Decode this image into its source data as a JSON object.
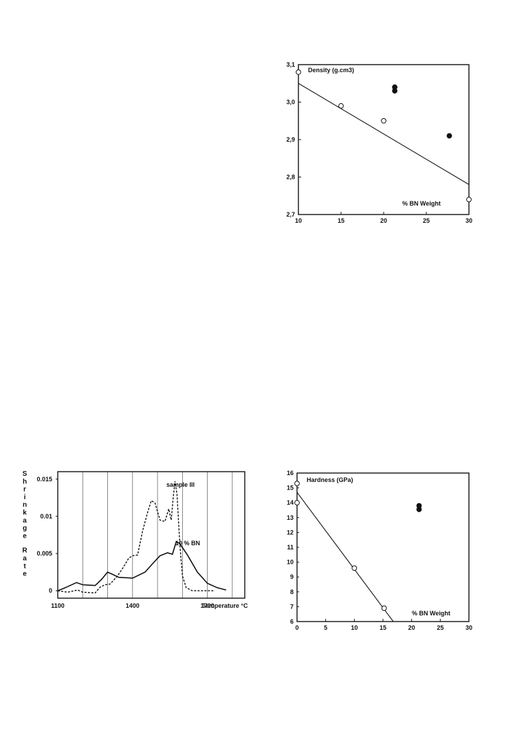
{
  "chart_data": [
    {
      "id": "density",
      "type": "scatter",
      "title": "Density (g.cm3)",
      "xlabel": "% BN Weight",
      "xlim": [
        10,
        30
      ],
      "ylim": [
        2.7,
        3.1
      ],
      "x_ticks": [
        "10",
        "15",
        "20",
        "25",
        "30"
      ],
      "y_ticks": [
        "2,7",
        "2,8",
        "2,9",
        "3,0",
        "3,1"
      ],
      "series": [
        {
          "marker": "open",
          "points": [
            [
              10,
              3.08
            ],
            [
              15,
              2.99
            ],
            [
              20,
              2.95
            ],
            [
              30,
              2.74
            ]
          ]
        },
        {
          "marker": "filled",
          "points": [
            [
              21.3,
              3.04
            ],
            [
              21.3,
              3.03
            ],
            [
              27.7,
              2.91
            ]
          ]
        }
      ],
      "fit_line": [
        [
          10,
          3.05
        ],
        [
          30,
          2.78
        ]
      ],
      "grid": false
    },
    {
      "id": "shrinkage",
      "type": "line",
      "ylabel": "Shrinkage Rate",
      "xlabel": "Temperature °C",
      "xlim": [
        1100,
        1850
      ],
      "ylim": [
        -0.001,
        0.016
      ],
      "x_ticks": [
        "1100",
        "1400",
        "1700"
      ],
      "y_ticks": [
        "0",
        "0.005",
        "0.01",
        "0.015"
      ],
      "vertical_gridlines": [
        1200,
        1300,
        1400,
        1500,
        1600,
        1700,
        1800
      ],
      "series": [
        {
          "name": "sample III",
          "style": "dashed",
          "points": [
            [
              1100,
              0.0
            ],
            [
              1140,
              -0.0002
            ],
            [
              1180,
              0.0001
            ],
            [
              1200,
              -0.0002
            ],
            [
              1250,
              -0.0003
            ],
            [
              1270,
              0.0005
            ],
            [
              1290,
              0.0008
            ],
            [
              1310,
              0.0009
            ],
            [
              1340,
              0.002
            ],
            [
              1360,
              0.003
            ],
            [
              1385,
              0.0044
            ],
            [
              1400,
              0.0047
            ],
            [
              1420,
              0.0048
            ],
            [
              1440,
              0.008
            ],
            [
              1460,
              0.0105
            ],
            [
              1475,
              0.0121
            ],
            [
              1490,
              0.0118
            ],
            [
              1510,
              0.0095
            ],
            [
              1530,
              0.0093
            ],
            [
              1545,
              0.011
            ],
            [
              1555,
              0.0095
            ],
            [
              1563,
              0.0125
            ],
            [
              1570,
              0.0147
            ],
            [
              1578,
              0.013
            ],
            [
              1590,
              0.006
            ],
            [
              1600,
              0.002
            ],
            [
              1615,
              0.0004
            ],
            [
              1640,
              0.0
            ],
            [
              1700,
              0.0
            ],
            [
              1730,
              0.0
            ]
          ]
        },
        {
          "name": "10 % BN",
          "style": "solid",
          "points": [
            [
              1100,
              0.0
            ],
            [
              1130,
              0.0004
            ],
            [
              1175,
              0.0011
            ],
            [
              1200,
              0.0008
            ],
            [
              1250,
              0.0007
            ],
            [
              1275,
              0.0015
            ],
            [
              1300,
              0.0025
            ],
            [
              1320,
              0.0022
            ],
            [
              1345,
              0.0018
            ],
            [
              1400,
              0.0017
            ],
            [
              1450,
              0.0025
            ],
            [
              1485,
              0.0038
            ],
            [
              1510,
              0.0047
            ],
            [
              1540,
              0.0051
            ],
            [
              1560,
              0.0049
            ],
            [
              1575,
              0.0066
            ],
            [
              1590,
              0.0063
            ],
            [
              1620,
              0.0048
            ],
            [
              1660,
              0.0025
            ],
            [
              1700,
              0.001
            ],
            [
              1740,
              0.0004
            ],
            [
              1775,
              0.0001
            ]
          ]
        }
      ],
      "grid": "vertical only"
    },
    {
      "id": "hardness",
      "type": "scatter",
      "title": "Hardness (GPa)",
      "xlabel": "% BN Weight",
      "xlim": [
        0,
        30
      ],
      "ylim": [
        6,
        16
      ],
      "x_ticks": [
        "0",
        "5",
        "10",
        "15",
        "20",
        "25",
        "30"
      ],
      "y_ticks": [
        "6",
        "7",
        "8",
        "9",
        "10",
        "11",
        "12",
        "13",
        "14",
        "15",
        "16"
      ],
      "series": [
        {
          "marker": "open",
          "points": [
            [
              0,
              15.3
            ],
            [
              0,
              14.0
            ],
            [
              10,
              9.6
            ],
            [
              15.2,
              6.9
            ]
          ]
        },
        {
          "marker": "filled",
          "points": [
            [
              21.3,
              13.8
            ],
            [
              21.3,
              13.55
            ]
          ]
        }
      ],
      "fit_line": [
        [
          0,
          14.7
        ],
        [
          16.8,
          6.0
        ]
      ],
      "grid": false
    }
  ]
}
